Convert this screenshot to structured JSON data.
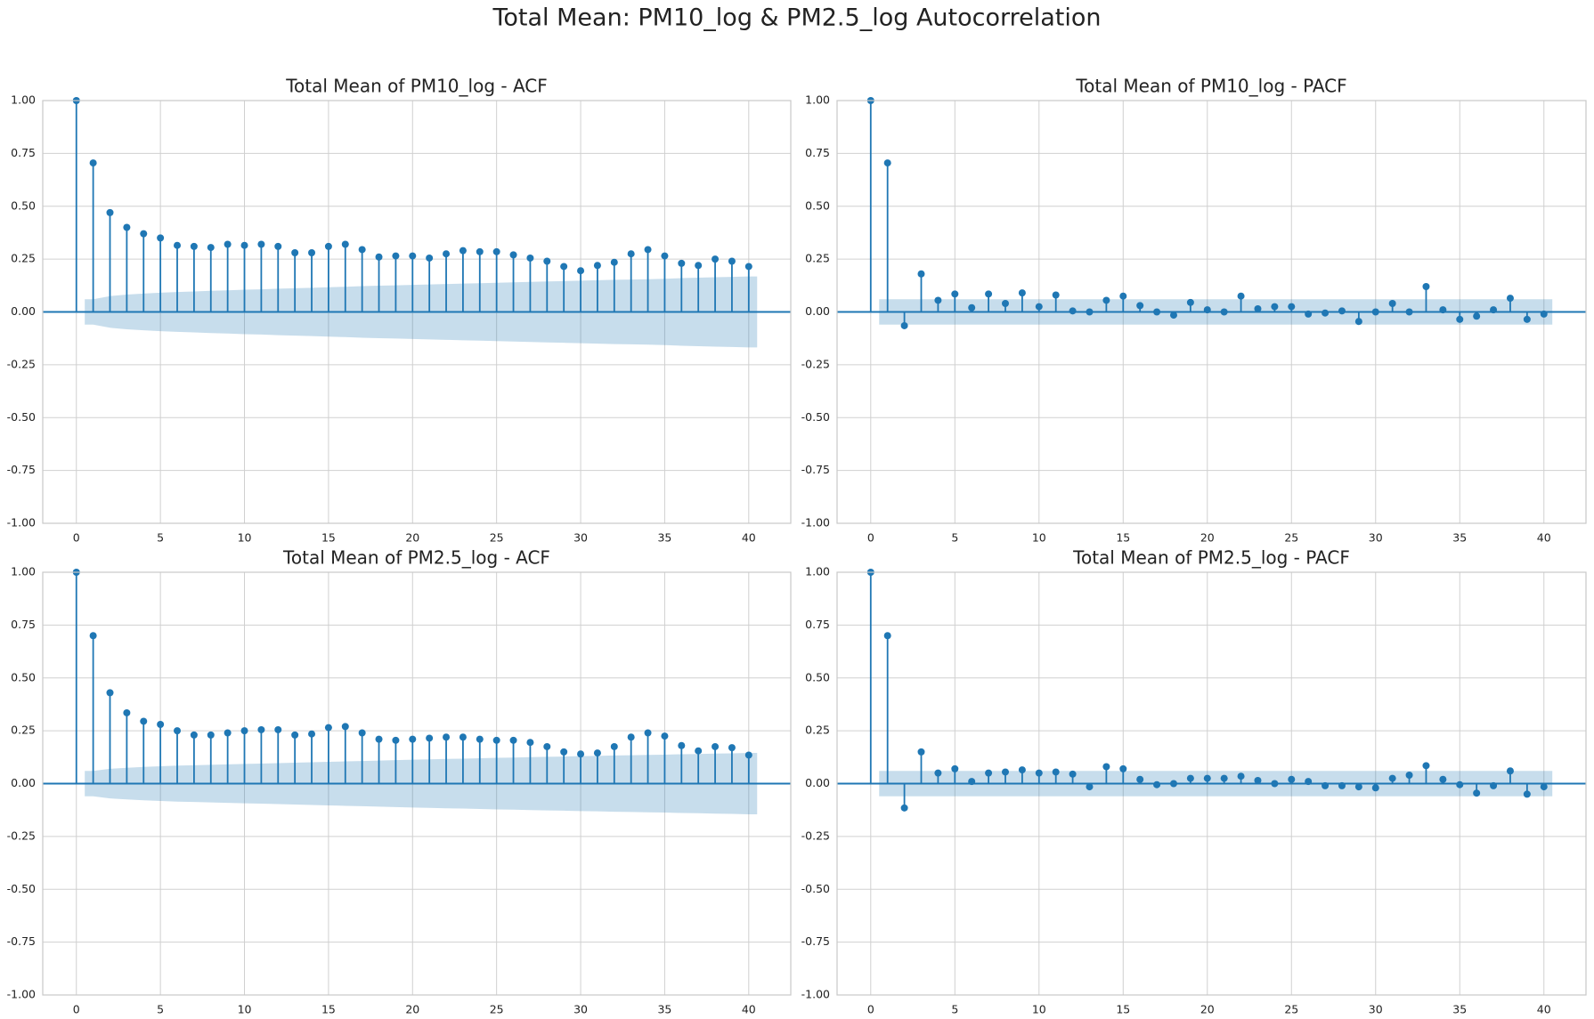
{
  "suptitle": "Total Mean: PM10_log & PM2.5_log Autocorrelation",
  "chart_data": [
    {
      "type": "stem",
      "title": "Total Mean of PM10_log - ACF",
      "color": "#1f77b4",
      "grid": true,
      "x": [
        0,
        1,
        2,
        3,
        4,
        5,
        6,
        7,
        8,
        9,
        10,
        11,
        12,
        13,
        14,
        15,
        16,
        17,
        18,
        19,
        20,
        21,
        22,
        23,
        24,
        25,
        26,
        27,
        28,
        29,
        30,
        31,
        32,
        33,
        34,
        35,
        36,
        37,
        38,
        39,
        40
      ],
      "values": [
        1,
        0.705,
        0.47,
        0.4,
        0.37,
        0.35,
        0.315,
        0.31,
        0.305,
        0.32,
        0.315,
        0.32,
        0.31,
        0.28,
        0.28,
        0.31,
        0.32,
        0.295,
        0.26,
        0.265,
        0.265,
        0.255,
        0.275,
        0.29,
        0.285,
        0.285,
        0.27,
        0.255,
        0.24,
        0.215,
        0.195,
        0.22,
        0.235,
        0.275,
        0.295,
        0.265,
        0.23,
        0.22,
        0.25,
        0.24,
        0.215
      ],
      "confidence": [
        null,
        0.06,
        0.075,
        0.082,
        0.087,
        0.091,
        0.094,
        0.097,
        0.1,
        0.102,
        0.105,
        0.107,
        0.11,
        0.112,
        0.114,
        0.117,
        0.119,
        0.122,
        0.124,
        0.126,
        0.128,
        0.13,
        0.132,
        0.134,
        0.136,
        0.138,
        0.14,
        0.142,
        0.144,
        0.146,
        0.148,
        0.15,
        0.152,
        0.153,
        0.155,
        0.157,
        0.16,
        0.162,
        0.164,
        0.166,
        0.168
      ],
      "xlim": [
        -2,
        42.5
      ],
      "ylim": [
        -1,
        1
      ],
      "xticks": [
        0,
        5,
        10,
        15,
        20,
        25,
        30,
        35,
        40
      ],
      "yticks": [
        {
          "value": -1,
          "label": "-1.00"
        },
        {
          "value": -0.75,
          "label": "-0.75"
        },
        {
          "value": -0.5,
          "label": "-0.50"
        },
        {
          "value": -0.25,
          "label": "-0.25"
        },
        {
          "value": 0,
          "label": "0.00"
        },
        {
          "value": 0.25,
          "label": "0.25"
        },
        {
          "value": 0.5,
          "label": "0.50"
        },
        {
          "value": 0.75,
          "label": "0.75"
        },
        {
          "value": 1,
          "label": "1.00"
        }
      ]
    },
    {
      "type": "stem",
      "title": "Total Mean of PM10_log - PACF",
      "color": "#1f77b4",
      "grid": true,
      "x": [
        0,
        1,
        2,
        3,
        4,
        5,
        6,
        7,
        8,
        9,
        10,
        11,
        12,
        13,
        14,
        15,
        16,
        17,
        18,
        19,
        20,
        21,
        22,
        23,
        24,
        25,
        26,
        27,
        28,
        29,
        30,
        31,
        32,
        33,
        34,
        35,
        36,
        37,
        38,
        39,
        40
      ],
      "values": [
        1,
        0.705,
        -0.065,
        0.18,
        0.055,
        0.085,
        0.02,
        0.085,
        0.04,
        0.09,
        0.025,
        0.08,
        0.005,
        0.0,
        0.055,
        0.075,
        0.03,
        0.0,
        -0.015,
        0.045,
        0.01,
        0.0,
        0.075,
        0.015,
        0.025,
        0.025,
        -0.01,
        -0.005,
        0.005,
        -0.045,
        0.0,
        0.04,
        0.0,
        0.12,
        0.01,
        -0.035,
        -0.02,
        0.01,
        0.065,
        -0.035,
        -0.01
      ],
      "confidence": [
        null,
        0.06,
        0.06,
        0.06,
        0.06,
        0.06,
        0.06,
        0.06,
        0.06,
        0.06,
        0.06,
        0.06,
        0.06,
        0.06,
        0.06,
        0.06,
        0.06,
        0.06,
        0.06,
        0.06,
        0.06,
        0.06,
        0.06,
        0.06,
        0.06,
        0.06,
        0.06,
        0.06,
        0.06,
        0.06,
        0.06,
        0.06,
        0.06,
        0.06,
        0.06,
        0.06,
        0.06,
        0.06,
        0.06,
        0.06,
        0.06
      ],
      "xlim": [
        -2,
        42.5
      ],
      "ylim": [
        -1,
        1
      ],
      "xticks": [
        0,
        5,
        10,
        15,
        20,
        25,
        30,
        35,
        40
      ],
      "yticks": [
        {
          "value": -1,
          "label": "-1.00"
        },
        {
          "value": -0.75,
          "label": "-0.75"
        },
        {
          "value": -0.5,
          "label": "-0.50"
        },
        {
          "value": -0.25,
          "label": "-0.25"
        },
        {
          "value": 0,
          "label": "0.00"
        },
        {
          "value": 0.25,
          "label": "0.25"
        },
        {
          "value": 0.5,
          "label": "0.50"
        },
        {
          "value": 0.75,
          "label": "0.75"
        },
        {
          "value": 1,
          "label": "1.00"
        }
      ]
    },
    {
      "type": "stem",
      "title": "Total Mean of PM2.5_log - ACF",
      "color": "#1f77b4",
      "grid": true,
      "x": [
        0,
        1,
        2,
        3,
        4,
        5,
        6,
        7,
        8,
        9,
        10,
        11,
        12,
        13,
        14,
        15,
        16,
        17,
        18,
        19,
        20,
        21,
        22,
        23,
        24,
        25,
        26,
        27,
        28,
        29,
        30,
        31,
        32,
        33,
        34,
        35,
        36,
        37,
        38,
        39,
        40
      ],
      "values": [
        1,
        0.7,
        0.43,
        0.335,
        0.295,
        0.28,
        0.25,
        0.23,
        0.23,
        0.24,
        0.25,
        0.255,
        0.255,
        0.23,
        0.235,
        0.265,
        0.27,
        0.24,
        0.21,
        0.205,
        0.21,
        0.215,
        0.22,
        0.22,
        0.21,
        0.205,
        0.205,
        0.195,
        0.175,
        0.15,
        0.14,
        0.145,
        0.175,
        0.22,
        0.24,
        0.225,
        0.18,
        0.155,
        0.175,
        0.17,
        0.135
      ],
      "confidence": [
        null,
        0.06,
        0.07,
        0.075,
        0.079,
        0.082,
        0.085,
        0.087,
        0.089,
        0.091,
        0.093,
        0.095,
        0.097,
        0.099,
        0.101,
        0.103,
        0.105,
        0.107,
        0.109,
        0.111,
        0.113,
        0.115,
        0.117,
        0.118,
        0.12,
        0.122,
        0.123,
        0.125,
        0.127,
        0.128,
        0.13,
        0.131,
        0.133,
        0.134,
        0.136,
        0.137,
        0.139,
        0.14,
        0.142,
        0.143,
        0.145
      ],
      "xlim": [
        -2,
        42.5
      ],
      "ylim": [
        -1,
        1
      ],
      "xticks": [
        0,
        5,
        10,
        15,
        20,
        25,
        30,
        35,
        40
      ],
      "yticks": [
        {
          "value": -1,
          "label": "-1.00"
        },
        {
          "value": -0.75,
          "label": "-0.75"
        },
        {
          "value": -0.5,
          "label": "-0.50"
        },
        {
          "value": -0.25,
          "label": "-0.25"
        },
        {
          "value": 0,
          "label": "0.00"
        },
        {
          "value": 0.25,
          "label": "0.25"
        },
        {
          "value": 0.5,
          "label": "0.50"
        },
        {
          "value": 0.75,
          "label": "0.75"
        },
        {
          "value": 1,
          "label": "1.00"
        }
      ]
    },
    {
      "type": "stem",
      "title": "Total Mean of PM2.5_log - PACF",
      "color": "#1f77b4",
      "grid": true,
      "x": [
        0,
        1,
        2,
        3,
        4,
        5,
        6,
        7,
        8,
        9,
        10,
        11,
        12,
        13,
        14,
        15,
        16,
        17,
        18,
        19,
        20,
        21,
        22,
        23,
        24,
        25,
        26,
        27,
        28,
        29,
        30,
        31,
        32,
        33,
        34,
        35,
        36,
        37,
        38,
        39,
        40
      ],
      "values": [
        1,
        0.7,
        -0.115,
        0.15,
        0.05,
        0.07,
        0.01,
        0.05,
        0.055,
        0.065,
        0.05,
        0.055,
        0.045,
        -0.015,
        0.08,
        0.07,
        0.02,
        -0.005,
        0.0,
        0.025,
        0.025,
        0.025,
        0.035,
        0.015,
        0.0,
        0.02,
        0.01,
        -0.01,
        -0.01,
        -0.015,
        -0.02,
        0.025,
        0.04,
        0.085,
        0.02,
        -0.005,
        -0.045,
        -0.01,
        0.06,
        -0.05,
        -0.015
      ],
      "confidence": [
        null,
        0.06,
        0.06,
        0.06,
        0.06,
        0.06,
        0.06,
        0.06,
        0.06,
        0.06,
        0.06,
        0.06,
        0.06,
        0.06,
        0.06,
        0.06,
        0.06,
        0.06,
        0.06,
        0.06,
        0.06,
        0.06,
        0.06,
        0.06,
        0.06,
        0.06,
        0.06,
        0.06,
        0.06,
        0.06,
        0.06,
        0.06,
        0.06,
        0.06,
        0.06,
        0.06,
        0.06,
        0.06,
        0.06,
        0.06,
        0.06
      ],
      "xlim": [
        -2,
        42.5
      ],
      "ylim": [
        -1,
        1
      ],
      "xticks": [
        0,
        5,
        10,
        15,
        20,
        25,
        30,
        35,
        40
      ],
      "yticks": [
        {
          "value": -1,
          "label": "-1.00"
        },
        {
          "value": -0.75,
          "label": "-0.75"
        },
        {
          "value": -0.5,
          "label": "-0.50"
        },
        {
          "value": -0.25,
          "label": "-0.25"
        },
        {
          "value": 0,
          "label": "0.00"
        },
        {
          "value": 0.25,
          "label": "0.25"
        },
        {
          "value": 0.5,
          "label": "0.50"
        },
        {
          "value": 0.75,
          "label": "0.75"
        },
        {
          "value": 1,
          "label": "1.00"
        }
      ]
    }
  ]
}
